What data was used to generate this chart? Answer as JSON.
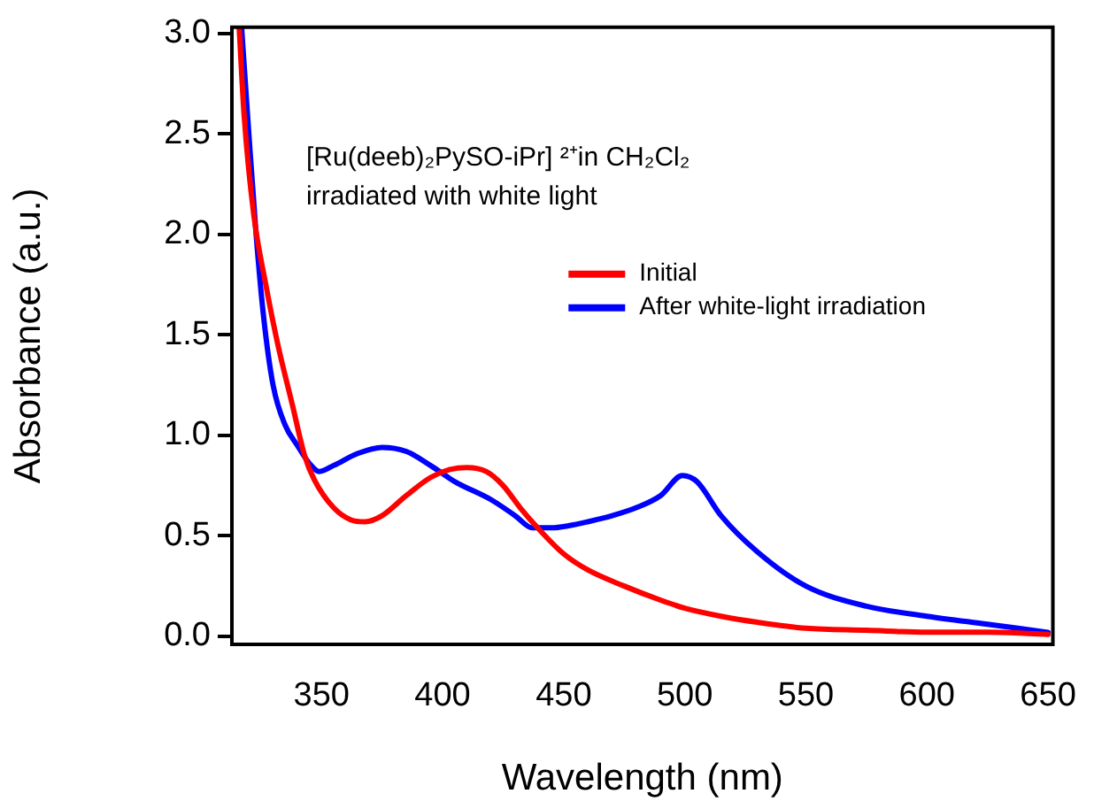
{
  "chart_data": {
    "type": "line",
    "xlabel": "Wavelength (nm)",
    "ylabel": "Absorbance (a.u.)",
    "xlim": [
      313,
      652
    ],
    "xticks": [
      350,
      400,
      450,
      500,
      550,
      600,
      650
    ],
    "ylim": [
      -0.04,
      3.03
    ],
    "yticks": [
      {
        "value": 0,
        "label": "0.0"
      },
      0.5,
      {
        "value": 1,
        "label": "1.0"
      },
      1.5,
      {
        "value": 2,
        "label": "2.0"
      },
      2.5,
      {
        "value": 3,
        "label": "3.0"
      }
    ],
    "grid": false,
    "legend": "top right",
    "marker": "none",
    "line_style": "solid",
    "annotations": [
      "[Ru(deeb)₂PySO-iPr] ²⁺in CH₂Cl₂",
      "irradiated with white light"
    ],
    "series": [
      {
        "name": "Initial",
        "color": "#ff0000",
        "x": [
          316,
          318,
          322,
          327,
          332,
          338,
          343,
          347,
          355,
          362,
          368,
          375,
          385,
          395,
          403,
          410,
          418,
          425,
          432,
          440,
          450,
          460,
          475,
          490,
          500,
          515,
          530,
          550,
          575,
          600,
          625,
          650
        ],
        "values": [
          3.03,
          2.6,
          2.1,
          1.75,
          1.45,
          1.15,
          0.9,
          0.78,
          0.64,
          0.58,
          0.57,
          0.6,
          0.7,
          0.79,
          0.83,
          0.84,
          0.82,
          0.75,
          0.64,
          0.53,
          0.41,
          0.33,
          0.25,
          0.18,
          0.14,
          0.1,
          0.07,
          0.04,
          0.03,
          0.02,
          0.02,
          0.01
        ]
      },
      {
        "name": "After white-light irradiation",
        "color": "#0000ff",
        "x": [
          317,
          320,
          323,
          326,
          330,
          335,
          340,
          345,
          349,
          355,
          365,
          375,
          385,
          395,
          405,
          420,
          430,
          437,
          445,
          452,
          460,
          470,
          480,
          490,
          499,
          505,
          515,
          530,
          550,
          575,
          600,
          625,
          650
        ],
        "values": [
          3.03,
          2.5,
          2.0,
          1.6,
          1.25,
          1.05,
          0.95,
          0.86,
          0.82,
          0.85,
          0.91,
          0.94,
          0.92,
          0.85,
          0.77,
          0.68,
          0.6,
          0.54,
          0.54,
          0.55,
          0.57,
          0.6,
          0.64,
          0.7,
          0.8,
          0.77,
          0.6,
          0.42,
          0.25,
          0.15,
          0.1,
          0.06,
          0.02
        ]
      }
    ]
  }
}
